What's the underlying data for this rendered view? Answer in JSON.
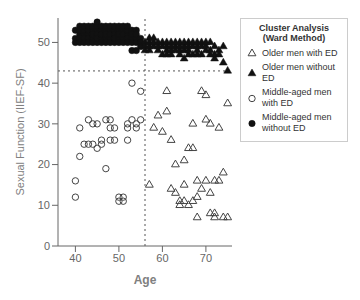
{
  "chart_data": {
    "type": "scatter",
    "xlabel": "Age",
    "ylabel": "Sexual Function (IIEF-SF)",
    "xlim": [
      36,
      76
    ],
    "ylim": [
      0,
      56
    ],
    "xticks": [
      40,
      50,
      60,
      70
    ],
    "yticks": [
      0,
      10,
      20,
      30,
      40,
      50
    ],
    "grid": false,
    "legend": "right",
    "legend_title": "Cluster Analysis\n(Ward Method)",
    "vline_x": 56,
    "hline_y": 43,
    "series": [
      {
        "name": "Older men with ED",
        "color": "#444444",
        "marker": "open_triangle",
        "x": [
          57,
          58,
          59,
          60,
          61,
          61,
          62,
          62,
          63,
          63,
          64,
          64,
          65,
          65,
          65,
          66,
          66,
          67,
          67,
          67,
          68,
          68,
          68,
          69,
          69,
          70,
          70,
          70,
          71,
          71,
          71,
          72,
          72,
          72,
          73,
          73,
          74,
          74,
          75,
          75
        ],
        "values": [
          15,
          29,
          32,
          28,
          38,
          33,
          26,
          14,
          20,
          13,
          10,
          11,
          15,
          11,
          21,
          24,
          10,
          30,
          24,
          11,
          16,
          12,
          7,
          38,
          14,
          31,
          16,
          37,
          30,
          13,
          8,
          7,
          16,
          8,
          29,
          16,
          18,
          7,
          35,
          7
        ]
      },
      {
        "name": "Older men without ED",
        "color": "#111111",
        "marker": "triangle",
        "x": [
          56,
          56,
          56,
          57,
          57,
          57,
          57,
          58,
          58,
          58,
          59,
          59,
          59,
          60,
          60,
          60,
          61,
          61,
          61,
          61,
          62,
          62,
          62,
          62,
          63,
          63,
          63,
          64,
          64,
          64,
          64,
          65,
          65,
          65,
          65,
          66,
          66,
          66,
          66,
          67,
          67,
          67,
          68,
          68,
          68,
          68,
          69,
          69,
          69,
          70,
          70,
          70,
          71,
          71,
          71,
          72,
          72,
          72,
          73,
          73,
          74,
          74,
          75
        ],
        "values": [
          50,
          49,
          48,
          51,
          50,
          49,
          48,
          49,
          50,
          51,
          48,
          49,
          50,
          50,
          49,
          47,
          49,
          50,
          48,
          47,
          50,
          49,
          48,
          47,
          49,
          50,
          48,
          48,
          49,
          50,
          47,
          49,
          50,
          48,
          46,
          50,
          49,
          47,
          48,
          49,
          50,
          47,
          49,
          47,
          48,
          50,
          50,
          49,
          47,
          48,
          49,
          50,
          47,
          50,
          48,
          49,
          46,
          47,
          48,
          47,
          49,
          45,
          43
        ]
      },
      {
        "name": "Middle-aged men with ED",
        "color": "#444444",
        "marker": "open_circle",
        "x": [
          40,
          40,
          41,
          41,
          42,
          43,
          43,
          44,
          44,
          45,
          45,
          46,
          46,
          47,
          47,
          48,
          48,
          48,
          49,
          49,
          50,
          50,
          51,
          51,
          52,
          52,
          52,
          53,
          53,
          54,
          54,
          55,
          55
        ],
        "values": [
          16,
          12,
          29,
          22,
          25,
          25,
          31,
          30,
          25,
          30,
          24,
          26,
          25,
          19,
          31,
          31,
          26,
          29,
          26,
          29,
          11,
          12,
          12,
          11,
          26,
          30,
          29,
          31,
          40,
          30,
          29,
          31,
          38
        ]
      },
      {
        "name": "Middle-aged men without ED",
        "color": "#111111",
        "marker": "circle",
        "x": [
          40,
          40,
          40,
          41,
          41,
          41,
          41,
          41,
          42,
          42,
          42,
          42,
          42,
          43,
          43,
          43,
          43,
          43,
          44,
          44,
          44,
          44,
          44,
          44,
          45,
          45,
          45,
          45,
          45,
          45,
          45,
          46,
          46,
          46,
          46,
          46,
          46,
          47,
          47,
          47,
          47,
          47,
          47,
          48,
          48,
          48,
          48,
          48,
          48,
          49,
          49,
          49,
          49,
          49,
          49,
          49,
          50,
          50,
          50,
          50,
          50,
          50,
          51,
          51,
          51,
          51,
          51,
          52,
          52,
          52,
          52,
          52,
          53,
          53,
          53,
          53,
          53,
          54,
          54,
          54,
          54,
          54,
          55,
          55,
          55
        ],
        "values": [
          51,
          53,
          50,
          52,
          54,
          51,
          53,
          50,
          52,
          51,
          53,
          54,
          50,
          52,
          51,
          53,
          54,
          50,
          52,
          51,
          53,
          54,
          50,
          52,
          51,
          53,
          54,
          50,
          52,
          55,
          51,
          52,
          51,
          53,
          50,
          52,
          54,
          52,
          51,
          53,
          54,
          50,
          52,
          52,
          51,
          53,
          50,
          52,
          54,
          52,
          51,
          53,
          54,
          50,
          52,
          51,
          52,
          51,
          50,
          53,
          54,
          52,
          51,
          50,
          53,
          52,
          54,
          52,
          51,
          50,
          53,
          54,
          51,
          50,
          53,
          52,
          48,
          51,
          50,
          53,
          52,
          48,
          51,
          50,
          49
        ]
      }
    ]
  }
}
